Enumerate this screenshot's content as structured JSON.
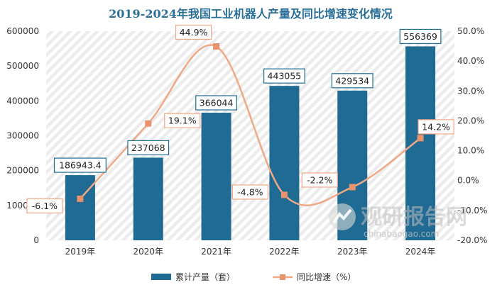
{
  "chart_data": {
    "type": "bar",
    "title": "2019-2024年我国工业机器人产量及同比增速变化情况",
    "categories": [
      "2019年",
      "2020年",
      "2021年",
      "2022年",
      "2023年",
      "2024年"
    ],
    "series": [
      {
        "name": "累计产量（套）",
        "type": "bar",
        "axis": "left",
        "values": [
          186943.4,
          237068,
          366044,
          443055,
          429534,
          556369
        ],
        "labels": [
          "186943.4",
          "237068",
          "366044",
          "443055",
          "429534",
          "556369"
        ]
      },
      {
        "name": "同比增速（%）",
        "type": "line",
        "axis": "right",
        "values": [
          -6.1,
          19.1,
          44.9,
          -4.8,
          -2.2,
          14.2
        ],
        "labels": [
          "-6.1%",
          "19.1%",
          "44.9%",
          "-4.8%",
          "-2.2%",
          "14.2%"
        ]
      }
    ],
    "y_left": {
      "range": [
        0,
        600000
      ],
      "ticks": [
        "0",
        "100000",
        "200000",
        "300000",
        "400000",
        "500000",
        "600000"
      ]
    },
    "y_right": {
      "range": [
        -20,
        50
      ],
      "ticks": [
        "-20.0%",
        "-10.0%",
        "0.0%",
        "10.0%",
        "20.0%",
        "30.0%",
        "40.0%",
        "50.0%"
      ]
    },
    "legend_position": "bottom",
    "grid": false,
    "colors": {
      "bar": "#1f6b93",
      "bar_label_border": "#1f6b93",
      "line": "#f0a987",
      "line_marker": "#e9926d",
      "line_label_border": "#f0a987",
      "title": "#2a6f97",
      "plot_stripe": "#ececec"
    }
  },
  "watermark": {
    "brand": "观研报告网",
    "url": "chinabaogao.com"
  }
}
